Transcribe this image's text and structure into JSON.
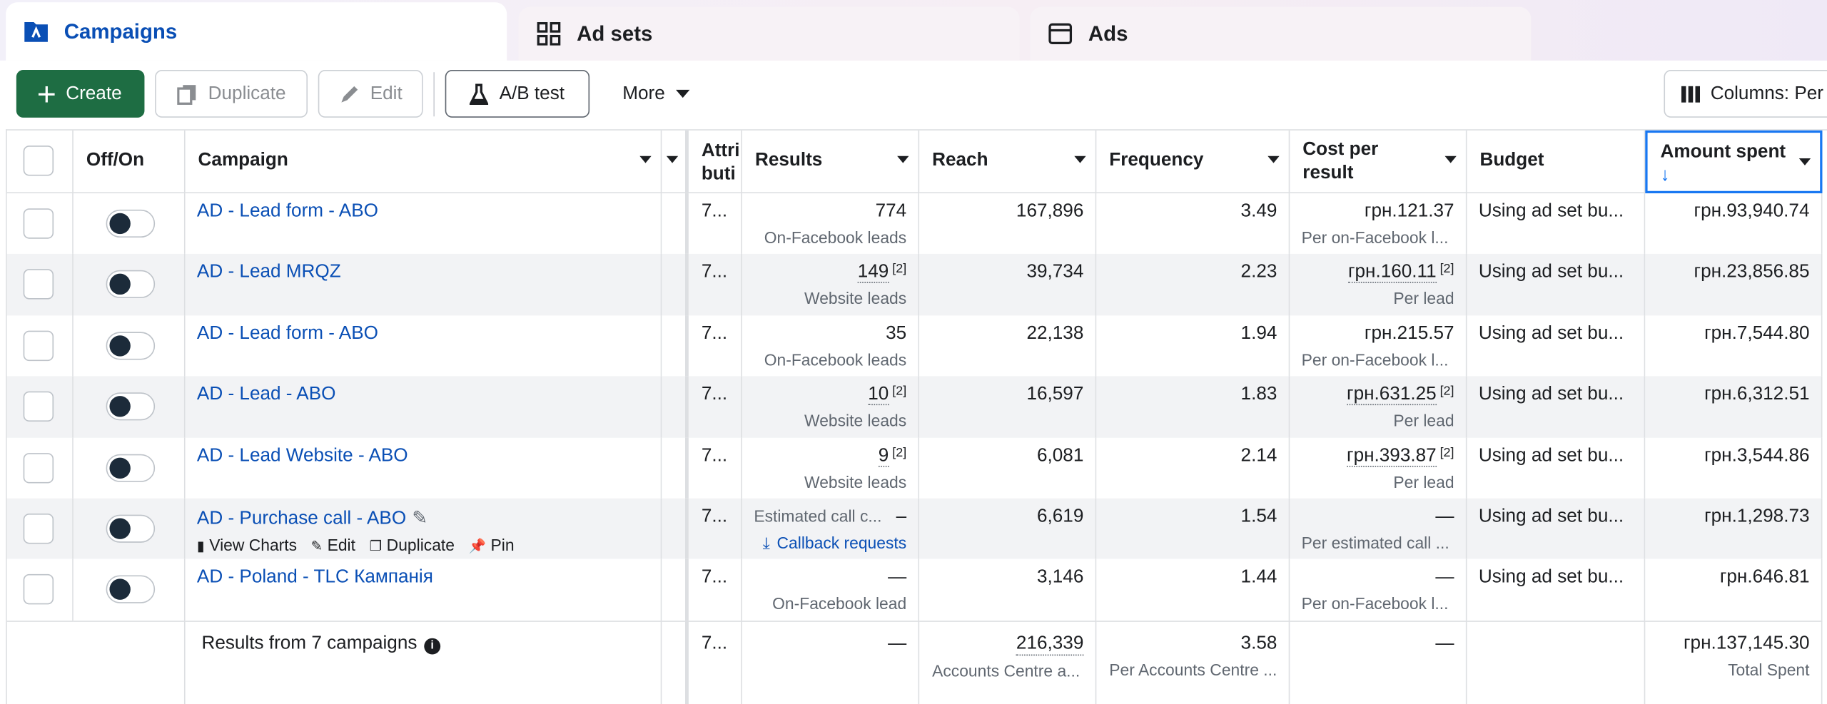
{
  "tabs": [
    "Campaigns",
    "Ad sets",
    "Ads"
  ],
  "toolbar": {
    "create": "Create",
    "duplicate": "Duplicate",
    "edit": "Edit",
    "ab_test": "A/B test",
    "more": "More",
    "columns": "Columns: Per"
  },
  "table": {
    "headers": {
      "toggle": "Off/On",
      "campaign": "Campaign",
      "attribution": "Attribution setting",
      "results": "Results",
      "reach": "Reach",
      "frequency": "Frequency",
      "cost": "Cost per result",
      "budget": "Budget",
      "amount_spent": "Amount spent"
    },
    "rows": [
      {
        "campaign": "AD - Lead form - ABO",
        "attribution": "7...",
        "results": "774",
        "results_type": "On-Facebook leads",
        "reach": "167,896",
        "frequency": "3.49",
        "cost": "грн.121.37",
        "cost_type": "Per on-Facebook l...",
        "budget": "Using ad set bu...",
        "amount_spent": "грн.93,940.74"
      },
      {
        "campaign": "AD - Lead MRQZ",
        "attribution": "7...",
        "results": "149",
        "results_note": "[2]",
        "results_type": "Website leads",
        "reach": "39,734",
        "frequency": "2.23",
        "cost": "грн.160.11",
        "cost_note": "[2]",
        "cost_type": "Per lead",
        "budget": "Using ad set bu...",
        "amount_spent": "грн.23,856.85"
      },
      {
        "campaign": "AD - Lead form - ABO",
        "attribution": "7...",
        "results": "35",
        "results_type": "On-Facebook leads",
        "reach": "22,138",
        "frequency": "1.94",
        "cost": "грн.215.57",
        "cost_type": "Per on-Facebook l...",
        "budget": "Using ad set bu...",
        "amount_spent": "грн.7,544.80"
      },
      {
        "campaign": "AD - Lead - ABO",
        "attribution": "7...",
        "results": "10",
        "results_note": "[2]",
        "results_type": "Website leads",
        "reach": "16,597",
        "frequency": "1.83",
        "cost": "грн.631.25",
        "cost_note": "[2]",
        "cost_type": "Per lead",
        "budget": "Using ad set bu...",
        "amount_spent": "грн.6,312.51"
      },
      {
        "campaign": "AD - Lead Website - ABO",
        "attribution": "7...",
        "results": "9",
        "results_note": "[2]",
        "results_type": "Website leads",
        "reach": "6,081",
        "frequency": "2.14",
        "cost": "грн.393.87",
        "cost_note": "[2]",
        "cost_type": "Per lead",
        "budget": "Using ad set bu...",
        "amount_spent": "грн.3,544.86"
      },
      {
        "campaign": "AD - Purchase call - ABO",
        "actions": [
          "View Charts",
          "Edit",
          "Duplicate",
          "Pin"
        ],
        "attribution": "7...",
        "results_label": "Estimated call c...",
        "results": "–",
        "results_type": "Callback requests",
        "reach": "6,619",
        "frequency": "1.54",
        "cost": "—",
        "cost_type": "Per estimated call ...",
        "budget": "Using ad set bu...",
        "amount_spent": "грн.1,298.73"
      },
      {
        "campaign": "AD - Poland - TLC Кампанія",
        "attribution": "7...",
        "results": "—",
        "results_type": "On-Facebook lead",
        "reach": "3,146",
        "frequency": "1.44",
        "cost": "—",
        "cost_type": "Per on-Facebook l...",
        "budget": "Using ad set bu...",
        "amount_spent": "грн.646.81"
      }
    ],
    "footer": {
      "campaign": "Results from 7 campaigns",
      "attribution": "7...",
      "results": "—",
      "reach": "216,339",
      "reach_type": "Accounts Centre a...",
      "frequency": "3.58",
      "frequency_type": "Per Accounts Centre ...",
      "cost": "—",
      "amount_spent": "грн.137,145.30",
      "amount_type": "Total Spent"
    }
  }
}
